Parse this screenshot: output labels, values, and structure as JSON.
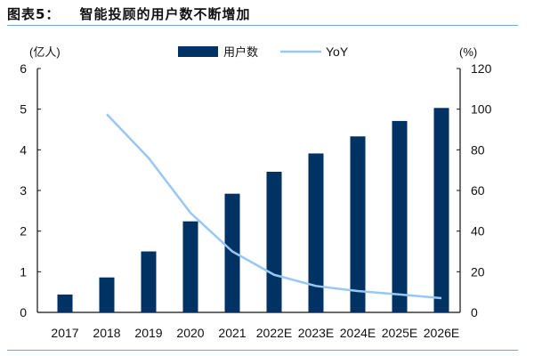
{
  "header": {
    "figure_label": "图表5：",
    "title": "智能投顾的用户数不断增加"
  },
  "chart_data": {
    "type": "bar",
    "title": "智能投顾的用户数不断增加",
    "categories": [
      "2017",
      "2018",
      "2019",
      "2020",
      "2021",
      "2022E",
      "2023E",
      "2024E",
      "2025E",
      "2026E"
    ],
    "series": [
      {
        "name": "用户数",
        "type": "bar",
        "axis": "left",
        "color": "#003264",
        "values": [
          0.44,
          0.86,
          1.5,
          2.24,
          2.92,
          3.46,
          3.91,
          4.33,
          4.71,
          5.03
        ]
      },
      {
        "name": "YoY",
        "type": "line",
        "axis": "right",
        "color": "#99c7f5",
        "values": [
          null,
          97.5,
          76,
          49,
          30,
          18.5,
          13,
          10.5,
          8.8,
          7
        ]
      }
    ],
    "y_left": {
      "label": "(亿人)",
      "ylim": [
        0,
        6
      ],
      "ticks": [
        "0",
        "1",
        "2",
        "3",
        "4",
        "5",
        "6"
      ]
    },
    "y_right": {
      "label": "(%)",
      "ylim": [
        0,
        120
      ],
      "ticks": [
        "0",
        "20",
        "40",
        "60",
        "80",
        "100",
        "120"
      ]
    },
    "grid": false,
    "legend": "top-center"
  }
}
